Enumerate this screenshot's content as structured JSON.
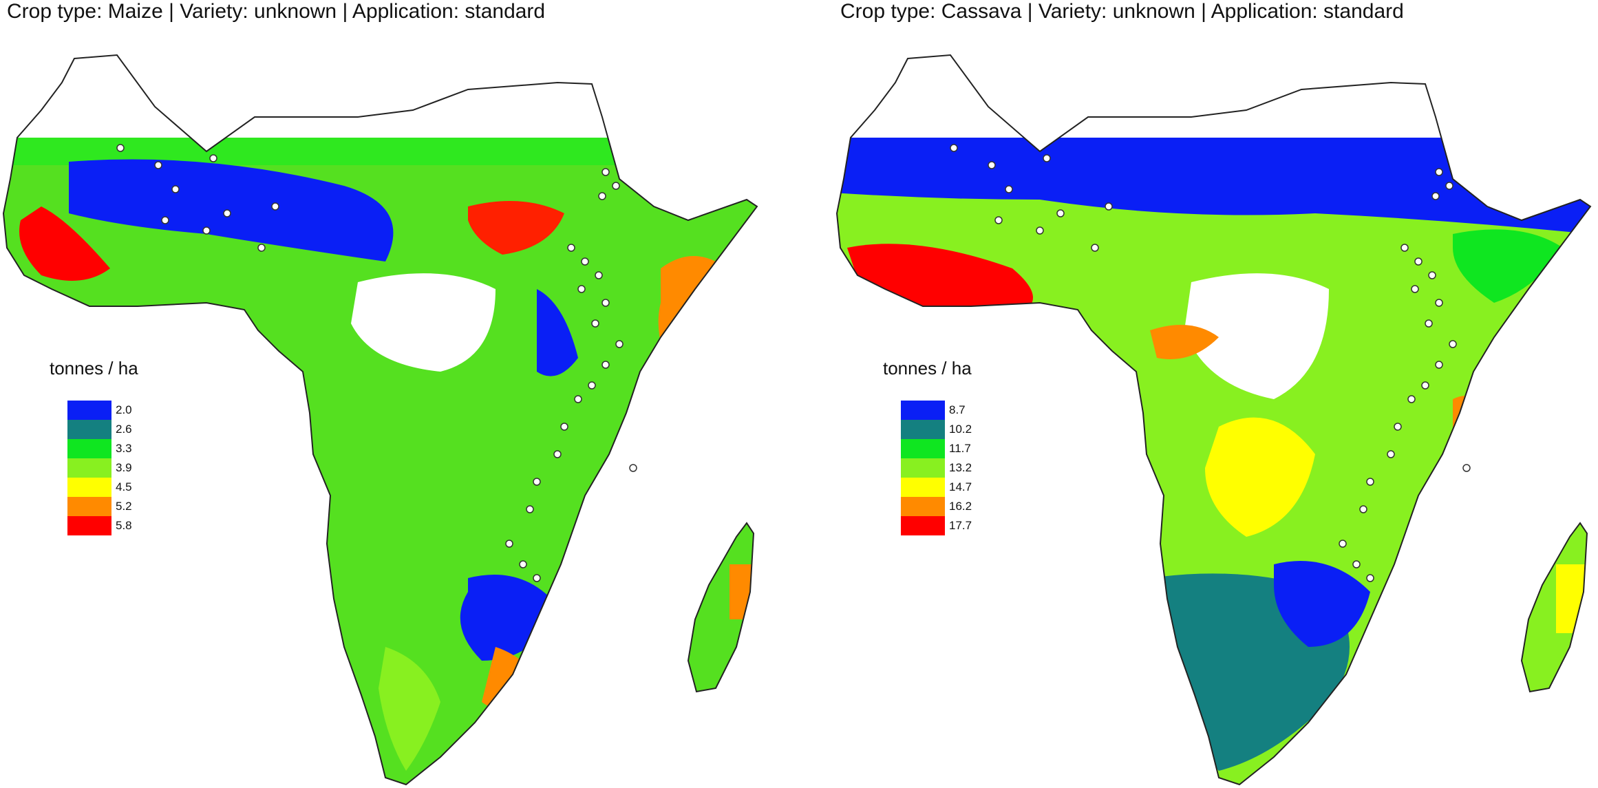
{
  "panels": [
    {
      "title": "Crop type: Maize |  Variety: unknown | Application: standard",
      "legend_title": "tonnes / ha",
      "legend": [
        {
          "label": "2.0",
          "color": "#0a1ff5"
        },
        {
          "label": "2.6",
          "color": "#148080"
        },
        {
          "label": "3.3",
          "color": "#0fe620"
        },
        {
          "label": "3.9",
          "color": "#88f020"
        },
        {
          "label": "4.5",
          "color": "#ffff00"
        },
        {
          "label": "5.2",
          "color": "#ff8a00"
        },
        {
          "label": "5.8",
          "color": "#ff0000"
        }
      ]
    },
    {
      "title": "Crop type: Cassava |  Variety: unknown | Application: standard",
      "legend_title": "tonnes / ha",
      "legend": [
        {
          "label": "8.7",
          "color": "#0a1ff5"
        },
        {
          "label": "10.2",
          "color": "#148080"
        },
        {
          "label": "11.7",
          "color": "#0fe620"
        },
        {
          "label": "13.2",
          "color": "#88f020"
        },
        {
          "label": "14.7",
          "color": "#ffff00"
        },
        {
          "label": "16.2",
          "color": "#ff8a00"
        },
        {
          "label": "17.7",
          "color": "#ff0000"
        }
      ]
    }
  ]
}
